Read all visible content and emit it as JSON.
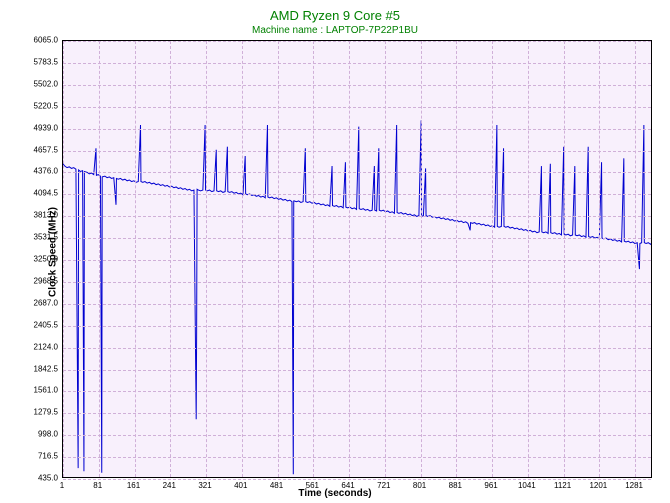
{
  "chart": {
    "type": "line",
    "title": "AMD Ryzen 9 Core #5",
    "subtitle": "Machine name : LAPTOP-7P22P1BU",
    "xlabel": "Time (seconds)",
    "ylabel": "Clock Speed (MHz)",
    "background_color": "#f8f0fc",
    "outer_background": "#ffffff",
    "grid_color": "#d0b0d8",
    "line_color": "#0000d0",
    "line_width": 1,
    "title_color": "#008000",
    "title_fontsize": 13,
    "subtitle_fontsize": 10,
    "axis_label_fontsize": 10,
    "tick_fontsize": 8,
    "xlim": [
      1,
      1321
    ],
    "ylim": [
      435.0,
      6065.0
    ],
    "xticks": [
      1,
      81,
      161,
      241,
      321,
      401,
      481,
      561,
      641,
      721,
      801,
      881,
      961,
      1041,
      1121,
      1201,
      1281
    ],
    "xtick_labels": [
      "1",
      "81",
      "161",
      "241",
      "321",
      "401",
      "481",
      "561",
      "641",
      "721",
      "801",
      "881",
      "961",
      "1041",
      "1121",
      "1201",
      "1281"
    ],
    "yticks": [
      435.0,
      716.5,
      998.0,
      1279.5,
      1561.0,
      1842.5,
      2124.0,
      2405.5,
      2687.0,
      2968.5,
      3250.0,
      3531.5,
      3813.0,
      4094.5,
      4376.0,
      4657.5,
      4939.0,
      5220.5,
      5502.0,
      5783.5,
      6065.0
    ],
    "ytick_labels": [
      "435.0",
      "716.5",
      "998.0",
      "1279.5",
      "1561.0",
      "1842.5",
      "2124.0",
      "2405.5",
      "2687.0",
      "2968.5",
      "3250.0",
      "3531.5",
      "3813.0",
      "4094.5",
      "4376.0",
      "4657.5",
      "4939.0",
      "5220.5",
      "5502.0",
      "5783.5",
      "6065.0"
    ],
    "series": [
      {
        "x": 1,
        "y": 4480
      },
      {
        "x": 5,
        "y": 4450
      },
      {
        "x": 10,
        "y": 4430
      },
      {
        "x": 15,
        "y": 4440
      },
      {
        "x": 20,
        "y": 4420
      },
      {
        "x": 25,
        "y": 4430
      },
      {
        "x": 30,
        "y": 4410
      },
      {
        "x": 35,
        "y": 550
      },
      {
        "x": 36,
        "y": 4400
      },
      {
        "x": 40,
        "y": 4380
      },
      {
        "x": 45,
        "y": 4390
      },
      {
        "x": 48,
        "y": 510
      },
      {
        "x": 49,
        "y": 4380
      },
      {
        "x": 55,
        "y": 4370
      },
      {
        "x": 60,
        "y": 4350
      },
      {
        "x": 65,
        "y": 4360
      },
      {
        "x": 70,
        "y": 4340
      },
      {
        "x": 75,
        "y": 4680
      },
      {
        "x": 76,
        "y": 4330
      },
      {
        "x": 80,
        "y": 4340
      },
      {
        "x": 85,
        "y": 4320
      },
      {
        "x": 88,
        "y": 490
      },
      {
        "x": 89,
        "y": 4310
      },
      {
        "x": 95,
        "y": 4320
      },
      {
        "x": 100,
        "y": 4300
      },
      {
        "x": 105,
        "y": 4310
      },
      {
        "x": 110,
        "y": 4290
      },
      {
        "x": 115,
        "y": 4300
      },
      {
        "x": 120,
        "y": 3950
      },
      {
        "x": 121,
        "y": 4290
      },
      {
        "x": 125,
        "y": 4280
      },
      {
        "x": 130,
        "y": 4290
      },
      {
        "x": 135,
        "y": 4270
      },
      {
        "x": 140,
        "y": 4280
      },
      {
        "x": 145,
        "y": 4260
      },
      {
        "x": 150,
        "y": 4270
      },
      {
        "x": 155,
        "y": 4250
      },
      {
        "x": 160,
        "y": 4260
      },
      {
        "x": 165,
        "y": 4240
      },
      {
        "x": 170,
        "y": 4250
      },
      {
        "x": 175,
        "y": 4980
      },
      {
        "x": 176,
        "y": 4250
      },
      {
        "x": 180,
        "y": 4240
      },
      {
        "x": 185,
        "y": 4250
      },
      {
        "x": 190,
        "y": 4230
      },
      {
        "x": 195,
        "y": 4240
      },
      {
        "x": 200,
        "y": 4220
      },
      {
        "x": 205,
        "y": 4230
      },
      {
        "x": 210,
        "y": 4210
      },
      {
        "x": 215,
        "y": 4220
      },
      {
        "x": 220,
        "y": 4200
      },
      {
        "x": 225,
        "y": 4210
      },
      {
        "x": 230,
        "y": 4190
      },
      {
        "x": 235,
        "y": 4200
      },
      {
        "x": 240,
        "y": 4180
      },
      {
        "x": 245,
        "y": 4190
      },
      {
        "x": 250,
        "y": 4170
      },
      {
        "x": 255,
        "y": 4180
      },
      {
        "x": 260,
        "y": 4160
      },
      {
        "x": 265,
        "y": 4170
      },
      {
        "x": 270,
        "y": 4150
      },
      {
        "x": 275,
        "y": 4160
      },
      {
        "x": 280,
        "y": 4140
      },
      {
        "x": 285,
        "y": 4150
      },
      {
        "x": 290,
        "y": 4130
      },
      {
        "x": 295,
        "y": 4140
      },
      {
        "x": 300,
        "y": 1180
      },
      {
        "x": 301,
        "y": 2280
      },
      {
        "x": 302,
        "y": 4150
      },
      {
        "x": 305,
        "y": 4140
      },
      {
        "x": 310,
        "y": 4130
      },
      {
        "x": 315,
        "y": 4140
      },
      {
        "x": 320,
        "y": 4980
      },
      {
        "x": 321,
        "y": 4140
      },
      {
        "x": 325,
        "y": 4130
      },
      {
        "x": 330,
        "y": 4140
      },
      {
        "x": 335,
        "y": 4120
      },
      {
        "x": 340,
        "y": 4130
      },
      {
        "x": 345,
        "y": 4660
      },
      {
        "x": 346,
        "y": 4130
      },
      {
        "x": 350,
        "y": 4120
      },
      {
        "x": 355,
        "y": 4130
      },
      {
        "x": 360,
        "y": 4110
      },
      {
        "x": 365,
        "y": 4120
      },
      {
        "x": 370,
        "y": 4700
      },
      {
        "x": 371,
        "y": 4120
      },
      {
        "x": 375,
        "y": 4110
      },
      {
        "x": 380,
        "y": 4120
      },
      {
        "x": 385,
        "y": 4100
      },
      {
        "x": 390,
        "y": 4110
      },
      {
        "x": 395,
        "y": 4090
      },
      {
        "x": 400,
        "y": 4100
      },
      {
        "x": 405,
        "y": 4080
      },
      {
        "x": 410,
        "y": 4580
      },
      {
        "x": 411,
        "y": 4090
      },
      {
        "x": 415,
        "y": 4080
      },
      {
        "x": 420,
        "y": 4090
      },
      {
        "x": 425,
        "y": 4070
      },
      {
        "x": 430,
        "y": 4080
      },
      {
        "x": 435,
        "y": 4060
      },
      {
        "x": 440,
        "y": 4070
      },
      {
        "x": 445,
        "y": 4050
      },
      {
        "x": 450,
        "y": 4060
      },
      {
        "x": 455,
        "y": 4040
      },
      {
        "x": 460,
        "y": 4980
      },
      {
        "x": 461,
        "y": 4050
      },
      {
        "x": 465,
        "y": 4040
      },
      {
        "x": 470,
        "y": 4050
      },
      {
        "x": 475,
        "y": 4030
      },
      {
        "x": 480,
        "y": 4040
      },
      {
        "x": 485,
        "y": 4020
      },
      {
        "x": 490,
        "y": 4030
      },
      {
        "x": 495,
        "y": 4010
      },
      {
        "x": 500,
        "y": 4020
      },
      {
        "x": 505,
        "y": 4000
      },
      {
        "x": 510,
        "y": 4010
      },
      {
        "x": 515,
        "y": 3990
      },
      {
        "x": 518,
        "y": 470
      },
      {
        "x": 519,
        "y": 4000
      },
      {
        "x": 520,
        "y": 4000
      },
      {
        "x": 525,
        "y": 3990
      },
      {
        "x": 530,
        "y": 4000
      },
      {
        "x": 535,
        "y": 3980
      },
      {
        "x": 540,
        "y": 3990
      },
      {
        "x": 545,
        "y": 4680
      },
      {
        "x": 546,
        "y": 3990
      },
      {
        "x": 550,
        "y": 3980
      },
      {
        "x": 555,
        "y": 3990
      },
      {
        "x": 560,
        "y": 3970
      },
      {
        "x": 565,
        "y": 3980
      },
      {
        "x": 570,
        "y": 3960
      },
      {
        "x": 575,
        "y": 3970
      },
      {
        "x": 580,
        "y": 3950
      },
      {
        "x": 585,
        "y": 3960
      },
      {
        "x": 590,
        "y": 3940
      },
      {
        "x": 595,
        "y": 3950
      },
      {
        "x": 600,
        "y": 3930
      },
      {
        "x": 605,
        "y": 4450
      },
      {
        "x": 606,
        "y": 3940
      },
      {
        "x": 610,
        "y": 3930
      },
      {
        "x": 615,
        "y": 3940
      },
      {
        "x": 620,
        "y": 3920
      },
      {
        "x": 625,
        "y": 3930
      },
      {
        "x": 630,
        "y": 3910
      },
      {
        "x": 635,
        "y": 4500
      },
      {
        "x": 636,
        "y": 3920
      },
      {
        "x": 640,
        "y": 3910
      },
      {
        "x": 645,
        "y": 3920
      },
      {
        "x": 650,
        "y": 3900
      },
      {
        "x": 655,
        "y": 3910
      },
      {
        "x": 660,
        "y": 3890
      },
      {
        "x": 665,
        "y": 4960
      },
      {
        "x": 666,
        "y": 3900
      },
      {
        "x": 670,
        "y": 3890
      },
      {
        "x": 675,
        "y": 3900
      },
      {
        "x": 680,
        "y": 3880
      },
      {
        "x": 685,
        "y": 3890
      },
      {
        "x": 690,
        "y": 3870
      },
      {
        "x": 695,
        "y": 3880
      },
      {
        "x": 700,
        "y": 4450
      },
      {
        "x": 701,
        "y": 3880
      },
      {
        "x": 705,
        "y": 3870
      },
      {
        "x": 710,
        "y": 4680
      },
      {
        "x": 711,
        "y": 3880
      },
      {
        "x": 715,
        "y": 3870
      },
      {
        "x": 720,
        "y": 3880
      },
      {
        "x": 725,
        "y": 3860
      },
      {
        "x": 730,
        "y": 3870
      },
      {
        "x": 735,
        "y": 3850
      },
      {
        "x": 740,
        "y": 3860
      },
      {
        "x": 745,
        "y": 3840
      },
      {
        "x": 750,
        "y": 4980
      },
      {
        "x": 751,
        "y": 3850
      },
      {
        "x": 755,
        "y": 3840
      },
      {
        "x": 760,
        "y": 3850
      },
      {
        "x": 765,
        "y": 3830
      },
      {
        "x": 770,
        "y": 3840
      },
      {
        "x": 775,
        "y": 3820
      },
      {
        "x": 780,
        "y": 3830
      },
      {
        "x": 785,
        "y": 3810
      },
      {
        "x": 790,
        "y": 3820
      },
      {
        "x": 795,
        "y": 3800
      },
      {
        "x": 800,
        "y": 3810
      },
      {
        "x": 805,
        "y": 5040
      },
      {
        "x": 806,
        "y": 3810
      },
      {
        "x": 810,
        "y": 3800
      },
      {
        "x": 815,
        "y": 4420
      },
      {
        "x": 816,
        "y": 3810
      },
      {
        "x": 820,
        "y": 3800
      },
      {
        "x": 825,
        "y": 3810
      },
      {
        "x": 830,
        "y": 3790
      },
      {
        "x": 835,
        "y": 3800
      },
      {
        "x": 840,
        "y": 3780
      },
      {
        "x": 845,
        "y": 3790
      },
      {
        "x": 850,
        "y": 3770
      },
      {
        "x": 855,
        "y": 3780
      },
      {
        "x": 860,
        "y": 3760
      },
      {
        "x": 865,
        "y": 3770
      },
      {
        "x": 870,
        "y": 3750
      },
      {
        "x": 875,
        "y": 3760
      },
      {
        "x": 880,
        "y": 3740
      },
      {
        "x": 885,
        "y": 3750
      },
      {
        "x": 890,
        "y": 3730
      },
      {
        "x": 895,
        "y": 3740
      },
      {
        "x": 900,
        "y": 3720
      },
      {
        "x": 905,
        "y": 3730
      },
      {
        "x": 910,
        "y": 3710
      },
      {
        "x": 915,
        "y": 3620
      },
      {
        "x": 916,
        "y": 3720
      },
      {
        "x": 920,
        "y": 3710
      },
      {
        "x": 925,
        "y": 3720
      },
      {
        "x": 930,
        "y": 3700
      },
      {
        "x": 935,
        "y": 3710
      },
      {
        "x": 940,
        "y": 3690
      },
      {
        "x": 945,
        "y": 3700
      },
      {
        "x": 950,
        "y": 3680
      },
      {
        "x": 955,
        "y": 3690
      },
      {
        "x": 960,
        "y": 3670
      },
      {
        "x": 965,
        "y": 3680
      },
      {
        "x": 970,
        "y": 3660
      },
      {
        "x": 975,
        "y": 4980
      },
      {
        "x": 976,
        "y": 3670
      },
      {
        "x": 980,
        "y": 3660
      },
      {
        "x": 985,
        "y": 3670
      },
      {
        "x": 990,
        "y": 4680
      },
      {
        "x": 991,
        "y": 3670
      },
      {
        "x": 995,
        "y": 3660
      },
      {
        "x": 1000,
        "y": 3670
      },
      {
        "x": 1005,
        "y": 3650
      },
      {
        "x": 1010,
        "y": 3660
      },
      {
        "x": 1015,
        "y": 3640
      },
      {
        "x": 1020,
        "y": 3650
      },
      {
        "x": 1025,
        "y": 3630
      },
      {
        "x": 1030,
        "y": 3640
      },
      {
        "x": 1035,
        "y": 3620
      },
      {
        "x": 1040,
        "y": 3630
      },
      {
        "x": 1045,
        "y": 3610
      },
      {
        "x": 1050,
        "y": 3620
      },
      {
        "x": 1055,
        "y": 3600
      },
      {
        "x": 1060,
        "y": 3610
      },
      {
        "x": 1065,
        "y": 3590
      },
      {
        "x": 1070,
        "y": 3600
      },
      {
        "x": 1075,
        "y": 4450
      },
      {
        "x": 1076,
        "y": 3600
      },
      {
        "x": 1080,
        "y": 3590
      },
      {
        "x": 1085,
        "y": 3600
      },
      {
        "x": 1090,
        "y": 3580
      },
      {
        "x": 1095,
        "y": 4480
      },
      {
        "x": 1096,
        "y": 3590
      },
      {
        "x": 1100,
        "y": 3580
      },
      {
        "x": 1105,
        "y": 3590
      },
      {
        "x": 1110,
        "y": 3570
      },
      {
        "x": 1115,
        "y": 3580
      },
      {
        "x": 1120,
        "y": 3560
      },
      {
        "x": 1125,
        "y": 4700
      },
      {
        "x": 1126,
        "y": 3570
      },
      {
        "x": 1130,
        "y": 3560
      },
      {
        "x": 1135,
        "y": 3570
      },
      {
        "x": 1140,
        "y": 3550
      },
      {
        "x": 1145,
        "y": 3560
      },
      {
        "x": 1150,
        "y": 4450
      },
      {
        "x": 1151,
        "y": 3560
      },
      {
        "x": 1155,
        "y": 3550
      },
      {
        "x": 1160,
        "y": 3560
      },
      {
        "x": 1165,
        "y": 3540
      },
      {
        "x": 1170,
        "y": 3550
      },
      {
        "x": 1175,
        "y": 3530
      },
      {
        "x": 1180,
        "y": 4700
      },
      {
        "x": 1181,
        "y": 3540
      },
      {
        "x": 1185,
        "y": 3530
      },
      {
        "x": 1190,
        "y": 3540
      },
      {
        "x": 1195,
        "y": 3520
      },
      {
        "x": 1200,
        "y": 3530
      },
      {
        "x": 1205,
        "y": 3510
      },
      {
        "x": 1210,
        "y": 4500
      },
      {
        "x": 1211,
        "y": 3520
      },
      {
        "x": 1215,
        "y": 3510
      },
      {
        "x": 1220,
        "y": 3520
      },
      {
        "x": 1225,
        "y": 3500
      },
      {
        "x": 1230,
        "y": 3510
      },
      {
        "x": 1235,
        "y": 3490
      },
      {
        "x": 1240,
        "y": 3500
      },
      {
        "x": 1245,
        "y": 3480
      },
      {
        "x": 1250,
        "y": 3490
      },
      {
        "x": 1255,
        "y": 3470
      },
      {
        "x": 1260,
        "y": 4550
      },
      {
        "x": 1261,
        "y": 3480
      },
      {
        "x": 1265,
        "y": 3470
      },
      {
        "x": 1270,
        "y": 3480
      },
      {
        "x": 1275,
        "y": 3460
      },
      {
        "x": 1280,
        "y": 3470
      },
      {
        "x": 1285,
        "y": 3450
      },
      {
        "x": 1290,
        "y": 3460
      },
      {
        "x": 1295,
        "y": 3120
      },
      {
        "x": 1296,
        "y": 3450
      },
      {
        "x": 1300,
        "y": 3460
      },
      {
        "x": 1305,
        "y": 4980
      },
      {
        "x": 1306,
        "y": 3460
      },
      {
        "x": 1310,
        "y": 3450
      },
      {
        "x": 1315,
        "y": 3460
      },
      {
        "x": 1320,
        "y": 3440
      },
      {
        "x": 1321,
        "y": 3450
      }
    ]
  }
}
